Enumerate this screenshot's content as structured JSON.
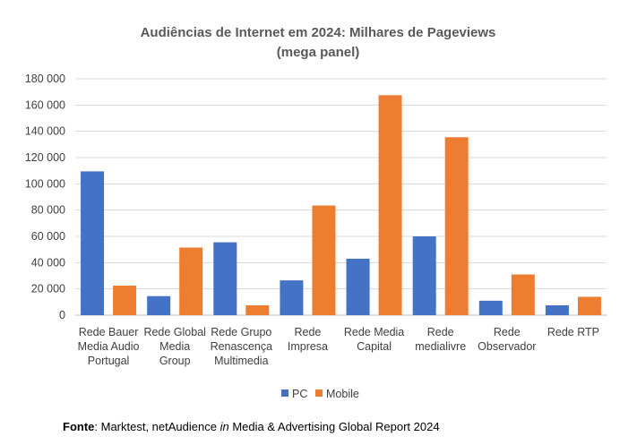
{
  "chart_data": {
    "type": "bar",
    "title": "Audiências de Internet em 2024: Milhares de Pageviews",
    "subtitle": "(mega panel)",
    "categories": [
      [
        "Rede Bauer",
        "Media Audio",
        "Portugal"
      ],
      [
        "Rede Global",
        "Media",
        "Group"
      ],
      [
        "Rede Grupo",
        "Renascença",
        "Multimedia"
      ],
      [
        "Rede",
        "Impresa"
      ],
      [
        "Rede Media",
        "Capital"
      ],
      [
        "Rede",
        "medialivre"
      ],
      [
        "Rede",
        "Observador"
      ],
      [
        "Rede RTP"
      ]
    ],
    "series": [
      {
        "name": "PC",
        "color": "#4472C4",
        "values": [
          109500,
          14500,
          55500,
          26500,
          43000,
          60000,
          11000,
          7500
        ]
      },
      {
        "name": "Mobile",
        "color": "#ED7D31",
        "values": [
          22500,
          51500,
          7500,
          83500,
          167500,
          135500,
          31000,
          14000
        ]
      }
    ],
    "ylim": [
      0,
      180000
    ],
    "yticks": [
      0,
      20000,
      40000,
      60000,
      80000,
      100000,
      120000,
      140000,
      160000,
      180000
    ],
    "ytick_labels": [
      "0",
      "20 000",
      "40 000",
      "60 000",
      "80 000",
      "100 000",
      "120 000",
      "140 000",
      "160 000",
      "180 000"
    ],
    "grid": true,
    "legend": "bottom",
    "xlabel": "",
    "ylabel": ""
  },
  "source": {
    "label": "Fonte",
    "sep": ": Marktest, netAudience ",
    "italic": "in",
    "rest": " Media & Advertising Global Report 2024"
  }
}
